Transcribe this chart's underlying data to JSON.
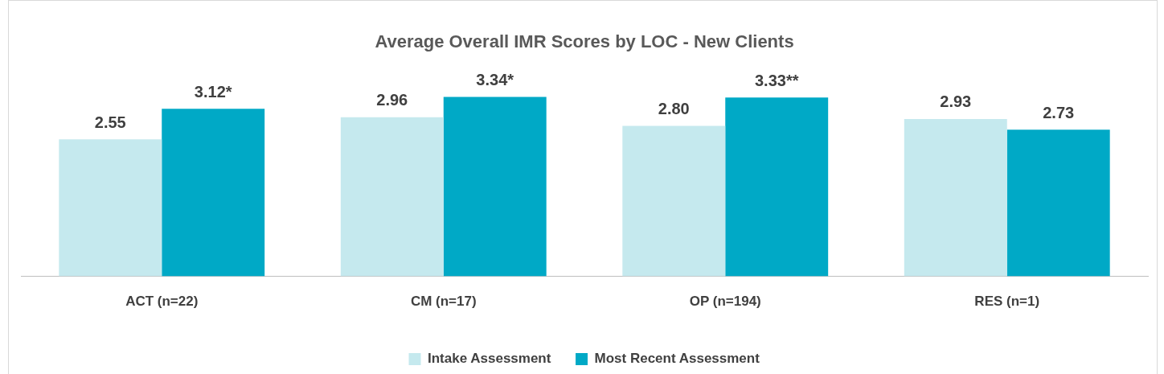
{
  "chart_data": {
    "type": "bar",
    "title": "Average Overall IMR Scores by LOC - New Clients",
    "categories": [
      "ACT (n=22)",
      "CM (n=17)",
      "OP (n=194)",
      "RES (n=1)"
    ],
    "series": [
      {
        "name": "Intake Assessment",
        "color": "#c5e9ee",
        "values": [
          2.55,
          2.96,
          2.8,
          2.93
        ],
        "value_labels": [
          "2.55",
          "2.96",
          "2.80",
          "2.93"
        ]
      },
      {
        "name": "Most Recent Assessment",
        "color": "#00a9c6",
        "values": [
          3.12,
          3.34,
          3.33,
          2.73
        ],
        "value_labels": [
          "3.12*",
          "3.34*",
          "3.33**",
          "2.73"
        ]
      }
    ],
    "tick_labels": "x",
    "grid": false,
    "legend": "bottom"
  }
}
